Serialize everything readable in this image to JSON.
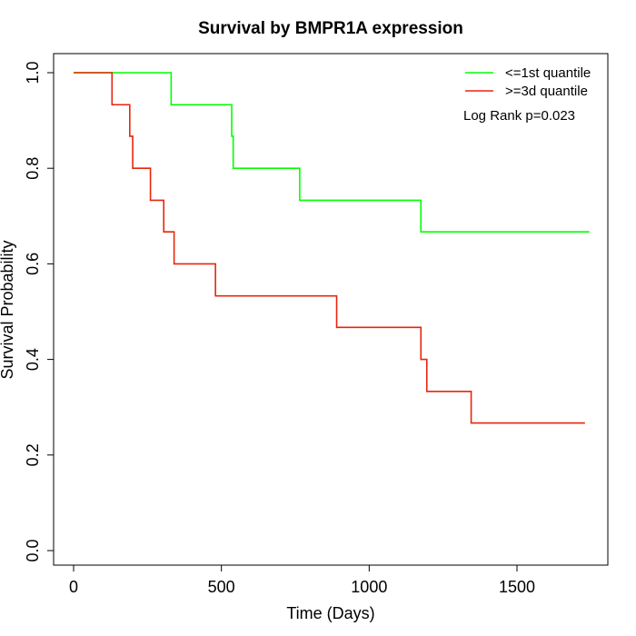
{
  "chart_data": {
    "type": "line",
    "title": "Survival by BMPR1A expression",
    "xlabel": "Time (Days)",
    "ylabel": "Survival Probability",
    "xlim": [
      0,
      1750
    ],
    "ylim": [
      0,
      1.0
    ],
    "xticks": [
      0,
      500,
      1000,
      1500
    ],
    "xtick_labels": [
      "0",
      "500",
      "1000",
      "1500"
    ],
    "yticks": [
      0.0,
      0.2,
      0.4,
      0.6,
      0.8,
      1.0
    ],
    "ytick_labels": [
      "0.0",
      "0.2",
      "0.4",
      "0.6",
      "0.8",
      "1.0"
    ],
    "grid": false,
    "legend_position": "top-right",
    "annotation": "Log Rank p=0.023",
    "series": [
      {
        "name": "<=1st quantile",
        "color": "#00ff00",
        "step": "post",
        "x": [
          0,
          330,
          535,
          540,
          765,
          1175,
          1745
        ],
        "y": [
          1.0,
          0.933,
          0.867,
          0.8,
          0.733,
          0.667,
          0.667
        ]
      },
      {
        "name": ">=3d quantile",
        "color": "#e8250c",
        "step": "post",
        "x": [
          0,
          130,
          190,
          200,
          260,
          305,
          340,
          480,
          890,
          1175,
          1195,
          1345,
          1730
        ],
        "y": [
          1.0,
          0.933,
          0.867,
          0.8,
          0.733,
          0.667,
          0.6,
          0.533,
          0.467,
          0.4,
          0.333,
          0.267,
          0.267
        ]
      }
    ]
  }
}
